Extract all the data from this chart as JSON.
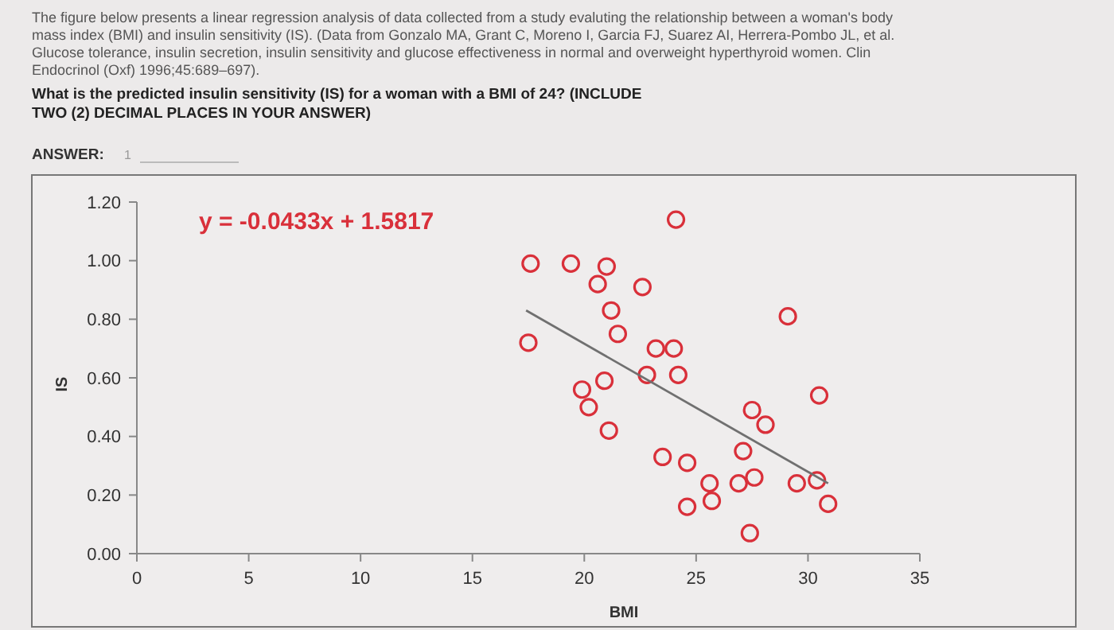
{
  "chart_data": {
    "type": "scatter",
    "title": "The figure below presents a linear regression analysis of data collected from a study evaluting the relationship between a woman's body mass index (BMI) and insulin sensitivity (IS). (Data from Gonzalo MA, Grant C, Moreno I, Garcia FJ, Suarez AI, Herrera-Pombo JL, et al. Glucose tolerance, insulin secretion, insulin sensitivity and glucose effectiveness in normal and overweight hyperthyroid women. Clin Endocrinol (Oxf) 1996;45:689–697).",
    "annotations": [
      "What is the predicted insulin sensitivity (IS) for a woman with a BMI of 24? (INCLUDE TWO (2) DECIMAL PLACES IN YOUR ANSWER)",
      "ANSWER:",
      "1",
      "y = -0.0433x + 1.5817"
    ],
    "xlabel": "BMI",
    "ylabel": "IS",
    "xlim": [
      0,
      35
    ],
    "xticks": [
      0,
      5,
      10,
      15,
      20,
      25,
      30,
      35
    ],
    "ylim": [
      0,
      1.2
    ],
    "yticks": [
      {
        "value": 0,
        "label": "0.00"
      },
      {
        "value": 0.2,
        "label": "0.20"
      },
      {
        "value": 0.4,
        "label": "0.40"
      },
      {
        "value": 0.6,
        "label": "0.60"
      },
      {
        "value": 0.8,
        "label": "0.80"
      },
      {
        "value": 1,
        "label": "1.00"
      },
      {
        "value": 1.2,
        "label": "1.20"
      }
    ],
    "grid": false,
    "series": [
      {
        "marker": "circle",
        "color": "#d9303a",
        "x": [
          24.1,
          17.6,
          19.4,
          21.0,
          20.6,
          22.6,
          21.2,
          29.1,
          21.5,
          17.5,
          23.2,
          24.0,
          22.8,
          24.2,
          19.9,
          20.9,
          20.2,
          30.5,
          27.5,
          28.1,
          21.1,
          27.1,
          23.5,
          24.6,
          25.6,
          26.9,
          27.6,
          29.5,
          30.4,
          24.6,
          25.7,
          30.9,
          27.4
        ],
        "values": [
          1.14,
          0.99,
          0.99,
          0.98,
          0.92,
          0.91,
          0.83,
          0.81,
          0.75,
          0.72,
          0.7,
          0.7,
          0.61,
          0.61,
          0.56,
          0.59,
          0.5,
          0.54,
          0.49,
          0.44,
          0.42,
          0.35,
          0.33,
          0.31,
          0.24,
          0.24,
          0.26,
          0.24,
          0.25,
          0.16,
          0.18,
          0.17,
          0.07
        ]
      },
      {
        "type": "line",
        "marker": "none",
        "color": "#707070",
        "line_style": "solid",
        "x": [
          17.4,
          30.9
        ],
        "values": [
          0.83,
          0.24
        ]
      }
    ]
  }
}
